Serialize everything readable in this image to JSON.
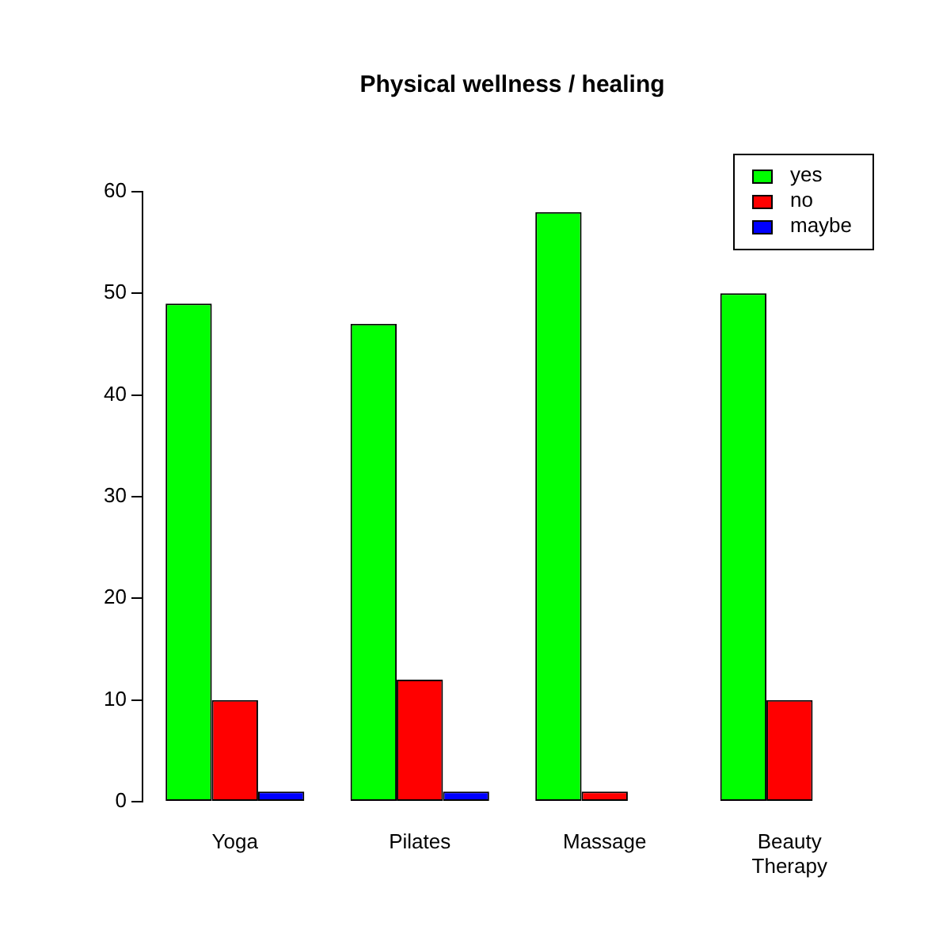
{
  "chart_data": {
    "type": "bar",
    "title": "Physical wellness / healing",
    "categories": [
      "Yoga",
      "Pilates",
      "Massage",
      "Beauty Therapy"
    ],
    "series": [
      {
        "name": "yes",
        "color": "#00ff00",
        "values": [
          49,
          47,
          58,
          50
        ]
      },
      {
        "name": "no",
        "color": "#ff0000",
        "values": [
          10,
          12,
          1,
          10
        ]
      },
      {
        "name": "maybe",
        "color": "#0000ff",
        "values": [
          1,
          1,
          0,
          0
        ]
      }
    ],
    "ylim": [
      0,
      60
    ],
    "yticks": [
      0,
      10,
      20,
      30,
      40,
      50,
      60
    ],
    "grid": false,
    "legend": "top right"
  }
}
